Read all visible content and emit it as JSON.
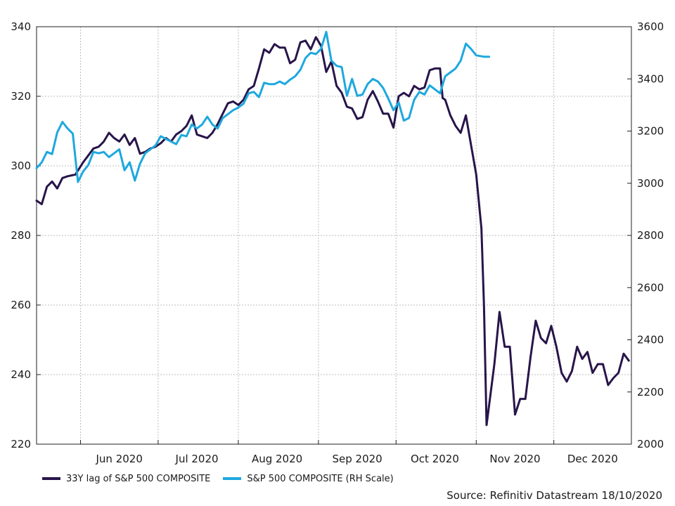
{
  "chart_data": {
    "type": "line",
    "title": "",
    "source": "Source: Refinitiv Datastream 18/10/2020",
    "x_axis": {
      "type": "date",
      "range": [
        "2020-05-15",
        "2020-12-31"
      ],
      "tick_labels": [
        "Jun 2020",
        "Jul 2020",
        "Aug 2020",
        "Sep 2020",
        "Oct 2020",
        "Nov 2020",
        "Dec 2020"
      ],
      "grid": true
    },
    "y_left": {
      "range": [
        220,
        340
      ],
      "ticks": [
        "220",
        "240",
        "260",
        "280",
        "300",
        "320",
        "340"
      ],
      "grid": true
    },
    "y_right": {
      "range": [
        2000,
        3600
      ],
      "ticks": [
        "2000",
        "2200",
        "2400",
        "2600",
        "2800",
        "3000",
        "3200",
        "3400",
        "3600"
      ]
    },
    "legend_position": "bottom-left",
    "series": [
      {
        "name": "33Y lag of S&P 500 COMPOSITE",
        "axis": "left",
        "color": "#28154a",
        "points": [
          [
            "2020-05-15",
            290
          ],
          [
            "2020-05-17",
            289
          ],
          [
            "2020-05-19",
            294
          ],
          [
            "2020-05-21",
            295.5
          ],
          [
            "2020-05-23",
            293.5
          ],
          [
            "2020-05-25",
            296.5
          ],
          [
            "2020-05-27",
            297
          ],
          [
            "2020-05-30",
            297.5
          ],
          [
            "2020-06-02",
            301
          ],
          [
            "2020-06-04",
            303
          ],
          [
            "2020-06-06",
            305
          ],
          [
            "2020-06-08",
            305.5
          ],
          [
            "2020-06-10",
            307
          ],
          [
            "2020-06-12",
            309.5
          ],
          [
            "2020-06-14",
            308
          ],
          [
            "2020-06-16",
            307
          ],
          [
            "2020-06-18",
            309
          ],
          [
            "2020-06-20",
            306
          ],
          [
            "2020-06-22",
            308
          ],
          [
            "2020-06-24",
            303.5
          ],
          [
            "2020-06-26",
            304
          ],
          [
            "2020-06-28",
            305
          ],
          [
            "2020-06-30",
            305.5
          ],
          [
            "2020-07-02",
            306.5
          ],
          [
            "2020-07-04",
            308
          ],
          [
            "2020-07-06",
            307
          ],
          [
            "2020-07-08",
            309
          ],
          [
            "2020-07-10",
            310
          ],
          [
            "2020-07-12",
            311.5
          ],
          [
            "2020-07-14",
            314.5
          ],
          [
            "2020-07-16",
            309
          ],
          [
            "2020-07-18",
            308.5
          ],
          [
            "2020-07-20",
            308
          ],
          [
            "2020-07-22",
            309.5
          ],
          [
            "2020-07-24",
            312
          ],
          [
            "2020-07-26",
            315
          ],
          [
            "2020-07-28",
            318
          ],
          [
            "2020-07-30",
            318.5
          ],
          [
            "2020-08-01",
            317.5
          ],
          [
            "2020-08-03",
            319
          ],
          [
            "2020-08-05",
            322
          ],
          [
            "2020-08-07",
            323
          ],
          [
            "2020-08-09",
            328
          ],
          [
            "2020-08-11",
            333.5
          ],
          [
            "2020-08-13",
            332.5
          ],
          [
            "2020-08-15",
            335
          ],
          [
            "2020-08-17",
            334
          ],
          [
            "2020-08-19",
            334
          ],
          [
            "2020-08-21",
            329.5
          ],
          [
            "2020-08-23",
            330.5
          ],
          [
            "2020-08-25",
            335.5
          ],
          [
            "2020-08-27",
            336
          ],
          [
            "2020-08-29",
            333.5
          ],
          [
            "2020-08-31",
            337
          ],
          [
            "2020-09-02",
            334.5
          ],
          [
            "2020-09-04",
            327
          ],
          [
            "2020-09-06",
            330
          ],
          [
            "2020-09-08",
            323
          ],
          [
            "2020-09-10",
            321
          ],
          [
            "2020-09-12",
            317
          ],
          [
            "2020-09-14",
            316.5
          ],
          [
            "2020-09-16",
            313.5
          ],
          [
            "2020-09-18",
            314
          ],
          [
            "2020-09-20",
            319
          ],
          [
            "2020-09-22",
            321.5
          ],
          [
            "2020-09-24",
            318.5
          ],
          [
            "2020-09-26",
            315
          ],
          [
            "2020-09-28",
            315
          ],
          [
            "2020-09-30",
            311
          ],
          [
            "2020-10-02",
            320
          ],
          [
            "2020-10-04",
            321
          ],
          [
            "2020-10-06",
            320
          ],
          [
            "2020-10-08",
            323
          ],
          [
            "2020-10-10",
            322
          ],
          [
            "2020-10-12",
            322.5
          ],
          [
            "2020-10-14",
            327.5
          ],
          [
            "2020-10-16",
            328
          ],
          [
            "2020-10-18",
            328
          ],
          [
            "2020-10-19",
            319.5
          ],
          [
            "2020-10-20",
            319
          ],
          [
            "2020-10-22",
            314.5
          ],
          [
            "2020-10-24",
            311.5
          ],
          [
            "2020-10-26",
            309.5
          ],
          [
            "2020-10-28",
            314.5
          ],
          [
            "2020-10-30",
            306
          ],
          [
            "2020-11-01",
            297.5
          ],
          [
            "2020-11-03",
            282
          ],
          [
            "2020-11-04",
            260
          ],
          [
            "2020-11-05",
            225.5
          ],
          [
            "2020-11-08",
            243
          ],
          [
            "2020-11-10",
            258
          ],
          [
            "2020-11-12",
            248
          ],
          [
            "2020-11-14",
            248
          ],
          [
            "2020-11-16",
            228.5
          ],
          [
            "2020-11-18",
            233
          ],
          [
            "2020-11-20",
            233
          ],
          [
            "2020-11-22",
            245
          ],
          [
            "2020-11-24",
            255.5
          ],
          [
            "2020-11-26",
            250.5
          ],
          [
            "2020-11-28",
            249
          ],
          [
            "2020-11-30",
            254
          ],
          [
            "2020-12-02",
            248
          ],
          [
            "2020-12-04",
            240.5
          ],
          [
            "2020-12-06",
            238
          ],
          [
            "2020-12-08",
            241
          ],
          [
            "2020-12-10",
            248
          ],
          [
            "2020-12-12",
            244.5
          ],
          [
            "2020-12-14",
            246.5
          ],
          [
            "2020-12-16",
            240.5
          ],
          [
            "2020-12-18",
            243
          ],
          [
            "2020-12-20",
            243
          ],
          [
            "2020-12-22",
            237
          ],
          [
            "2020-12-24",
            239
          ],
          [
            "2020-12-26",
            240.5
          ],
          [
            "2020-12-28",
            246
          ],
          [
            "2020-12-30",
            244
          ]
        ]
      },
      {
        "name": "S&P 500 COMPOSITE (RH Scale)",
        "axis": "right",
        "color": "#1ea8de",
        "points": [
          [
            "2020-05-15",
            3058
          ],
          [
            "2020-05-17",
            3080
          ],
          [
            "2020-05-19",
            3120
          ],
          [
            "2020-05-21",
            3112
          ],
          [
            "2020-05-23",
            3195
          ],
          [
            "2020-05-25",
            3235
          ],
          [
            "2020-05-27",
            3210
          ],
          [
            "2020-05-29",
            3190
          ],
          [
            "2020-05-31",
            3005
          ],
          [
            "2020-06-02",
            3045
          ],
          [
            "2020-06-04",
            3070
          ],
          [
            "2020-06-06",
            3120
          ],
          [
            "2020-06-08",
            3115
          ],
          [
            "2020-06-10",
            3120
          ],
          [
            "2020-06-12",
            3100
          ],
          [
            "2020-06-14",
            3115
          ],
          [
            "2020-06-16",
            3130
          ],
          [
            "2020-06-18",
            3050
          ],
          [
            "2020-06-20",
            3080
          ],
          [
            "2020-06-22",
            3010
          ],
          [
            "2020-06-24",
            3075
          ],
          [
            "2020-06-26",
            3115
          ],
          [
            "2020-06-28",
            3130
          ],
          [
            "2020-06-30",
            3145
          ],
          [
            "2020-07-02",
            3180
          ],
          [
            "2020-07-04",
            3170
          ],
          [
            "2020-07-06",
            3160
          ],
          [
            "2020-07-08",
            3150
          ],
          [
            "2020-07-10",
            3185
          ],
          [
            "2020-07-12",
            3180
          ],
          [
            "2020-07-14",
            3225
          ],
          [
            "2020-07-16",
            3210
          ],
          [
            "2020-07-18",
            3225
          ],
          [
            "2020-07-20",
            3255
          ],
          [
            "2020-07-22",
            3225
          ],
          [
            "2020-07-24",
            3210
          ],
          [
            "2020-07-26",
            3250
          ],
          [
            "2020-07-28",
            3265
          ],
          [
            "2020-07-30",
            3280
          ],
          [
            "2020-08-01",
            3290
          ],
          [
            "2020-08-03",
            3305
          ],
          [
            "2020-08-05",
            3345
          ],
          [
            "2020-08-07",
            3350
          ],
          [
            "2020-08-09",
            3330
          ],
          [
            "2020-08-11",
            3385
          ],
          [
            "2020-08-13",
            3380
          ],
          [
            "2020-08-15",
            3380
          ],
          [
            "2020-08-17",
            3390
          ],
          [
            "2020-08-19",
            3380
          ],
          [
            "2020-08-21",
            3397
          ],
          [
            "2020-08-23",
            3410
          ],
          [
            "2020-08-25",
            3435
          ],
          [
            "2020-08-27",
            3480
          ],
          [
            "2020-08-29",
            3500
          ],
          [
            "2020-08-31",
            3495
          ],
          [
            "2020-09-02",
            3515
          ],
          [
            "2020-09-04",
            3580
          ],
          [
            "2020-09-06",
            3470
          ],
          [
            "2020-09-08",
            3450
          ],
          [
            "2020-09-10",
            3445
          ],
          [
            "2020-09-12",
            3335
          ],
          [
            "2020-09-14",
            3400
          ],
          [
            "2020-09-16",
            3335
          ],
          [
            "2020-09-18",
            3340
          ],
          [
            "2020-09-20",
            3380
          ],
          [
            "2020-09-22",
            3400
          ],
          [
            "2020-09-24",
            3390
          ],
          [
            "2020-09-26",
            3365
          ],
          [
            "2020-09-28",
            3325
          ],
          [
            "2020-09-30",
            3280
          ],
          [
            "2020-10-02",
            3310
          ],
          [
            "2020-10-04",
            3240
          ],
          [
            "2020-10-06",
            3250
          ],
          [
            "2020-10-08",
            3320
          ],
          [
            "2020-10-10",
            3350
          ],
          [
            "2020-10-12",
            3340
          ],
          [
            "2020-10-14",
            3375
          ],
          [
            "2020-10-16",
            3360
          ],
          [
            "2020-10-18",
            3345
          ],
          [
            "2020-10-20",
            3410
          ],
          [
            "2020-10-22",
            3425
          ],
          [
            "2020-10-24",
            3440
          ],
          [
            "2020-10-26",
            3470
          ],
          [
            "2020-10-28",
            3535
          ],
          [
            "2020-10-30",
            3515
          ],
          [
            "2020-11-01",
            3490
          ],
          [
            "2020-11-04",
            3485
          ],
          [
            "2020-11-06",
            3485
          ]
        ]
      }
    ]
  }
}
